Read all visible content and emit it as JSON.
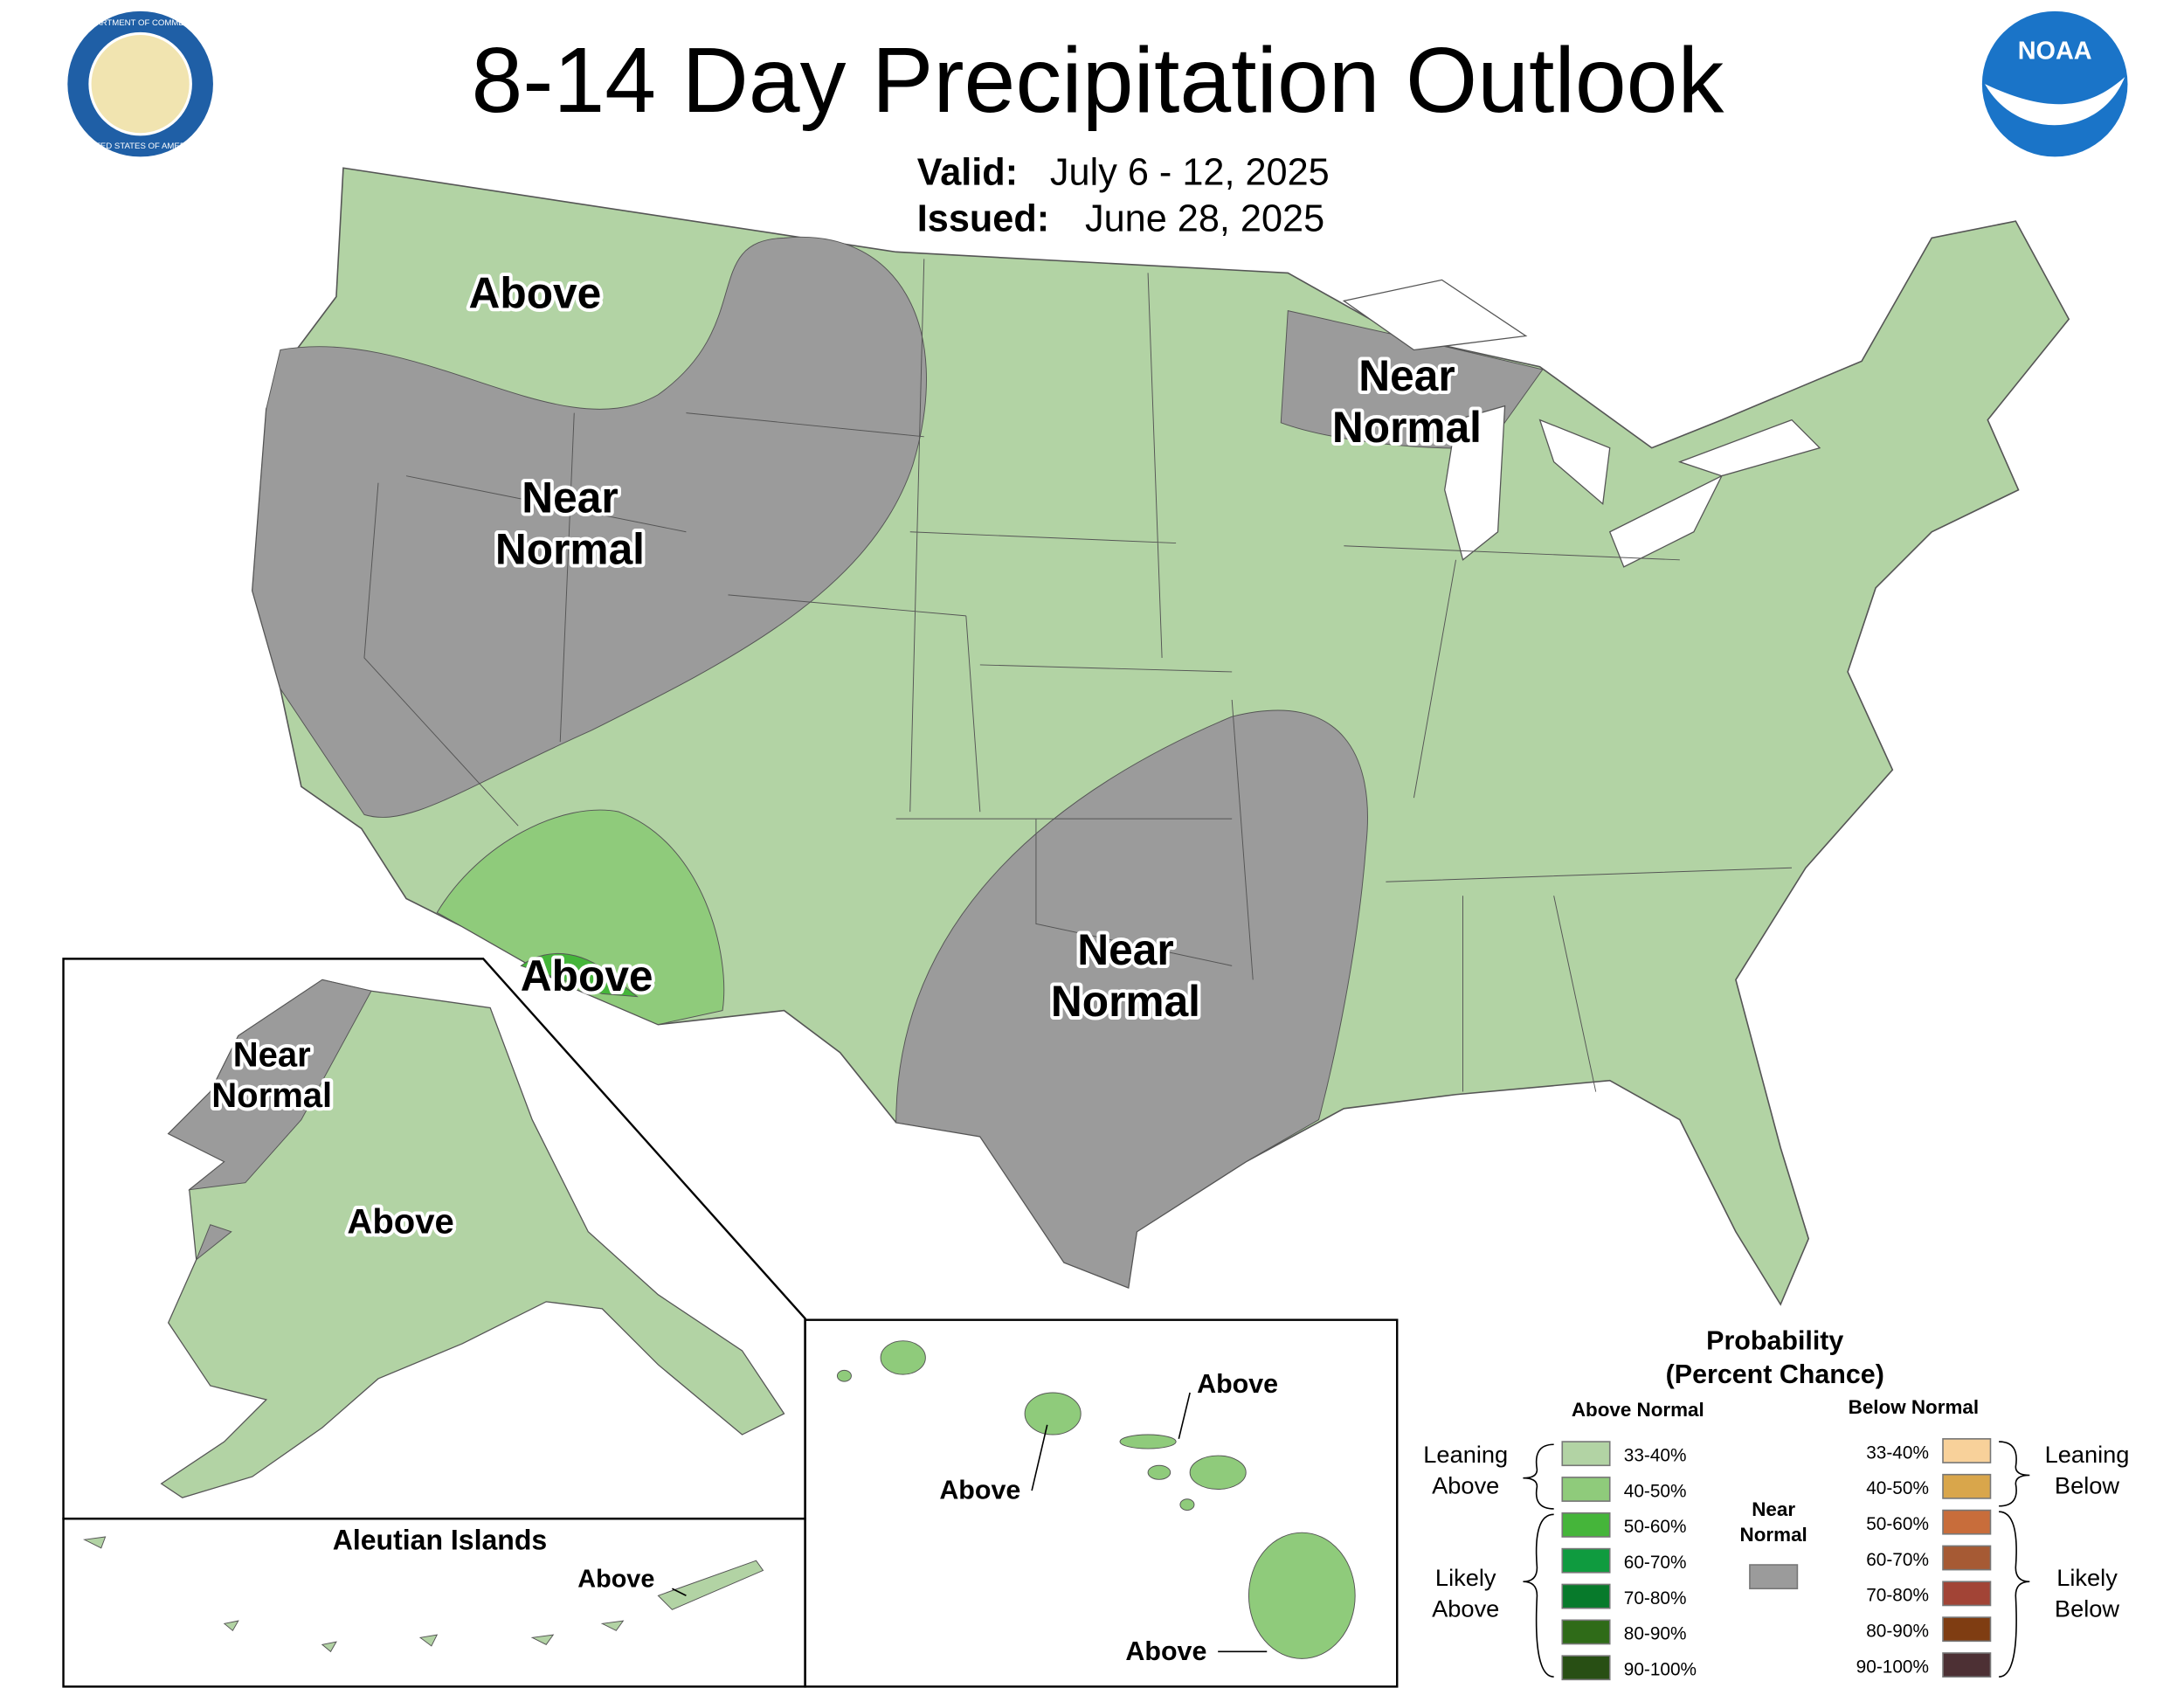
{
  "header": {
    "title": "8-14 Day Precipitation Outlook",
    "valid_label": "Valid:",
    "valid": "July 6 - 12, 2025",
    "issued_label": "Issued:",
    "issued": "June 28, 2025"
  },
  "logos": {
    "seal_top": "DEPARTMENT OF COMMERCE",
    "seal_bottom": "UNITED STATES OF AMERICA",
    "noaa": "NOAA"
  },
  "map": {
    "conus_labels": [
      [
        "Above"
      ],
      [
        "Near",
        "Normal"
      ],
      [
        "Near",
        "Normal"
      ],
      [
        "Above"
      ],
      [
        "Near",
        "Normal"
      ]
    ],
    "alaska_labels": [
      [
        "Near",
        "Normal"
      ],
      [
        "Above"
      ]
    ],
    "aleutian": {
      "title": "Aleutian Islands",
      "label": "Above"
    },
    "hawaii_labels": [
      "Above",
      "Above",
      "Above"
    ]
  },
  "legend": {
    "title": [
      "Probability",
      "(Percent Chance)"
    ],
    "above_heading": "Above Normal",
    "below_heading": "Below Normal",
    "near": [
      "Near",
      "Normal"
    ],
    "above": [
      "33-40%",
      "40-50%",
      "50-60%",
      "60-70%",
      "70-80%",
      "80-90%",
      "90-100%"
    ],
    "below": [
      "33-40%",
      "40-50%",
      "50-60%",
      "60-70%",
      "70-80%",
      "80-90%",
      "90-100%"
    ],
    "leaning_above": [
      "Leaning",
      "Above"
    ],
    "likely_above": [
      "Likely",
      "Above"
    ],
    "leaning_below": [
      "Leaning",
      "Below"
    ],
    "likely_below": [
      "Likely",
      "Below"
    ]
  }
}
